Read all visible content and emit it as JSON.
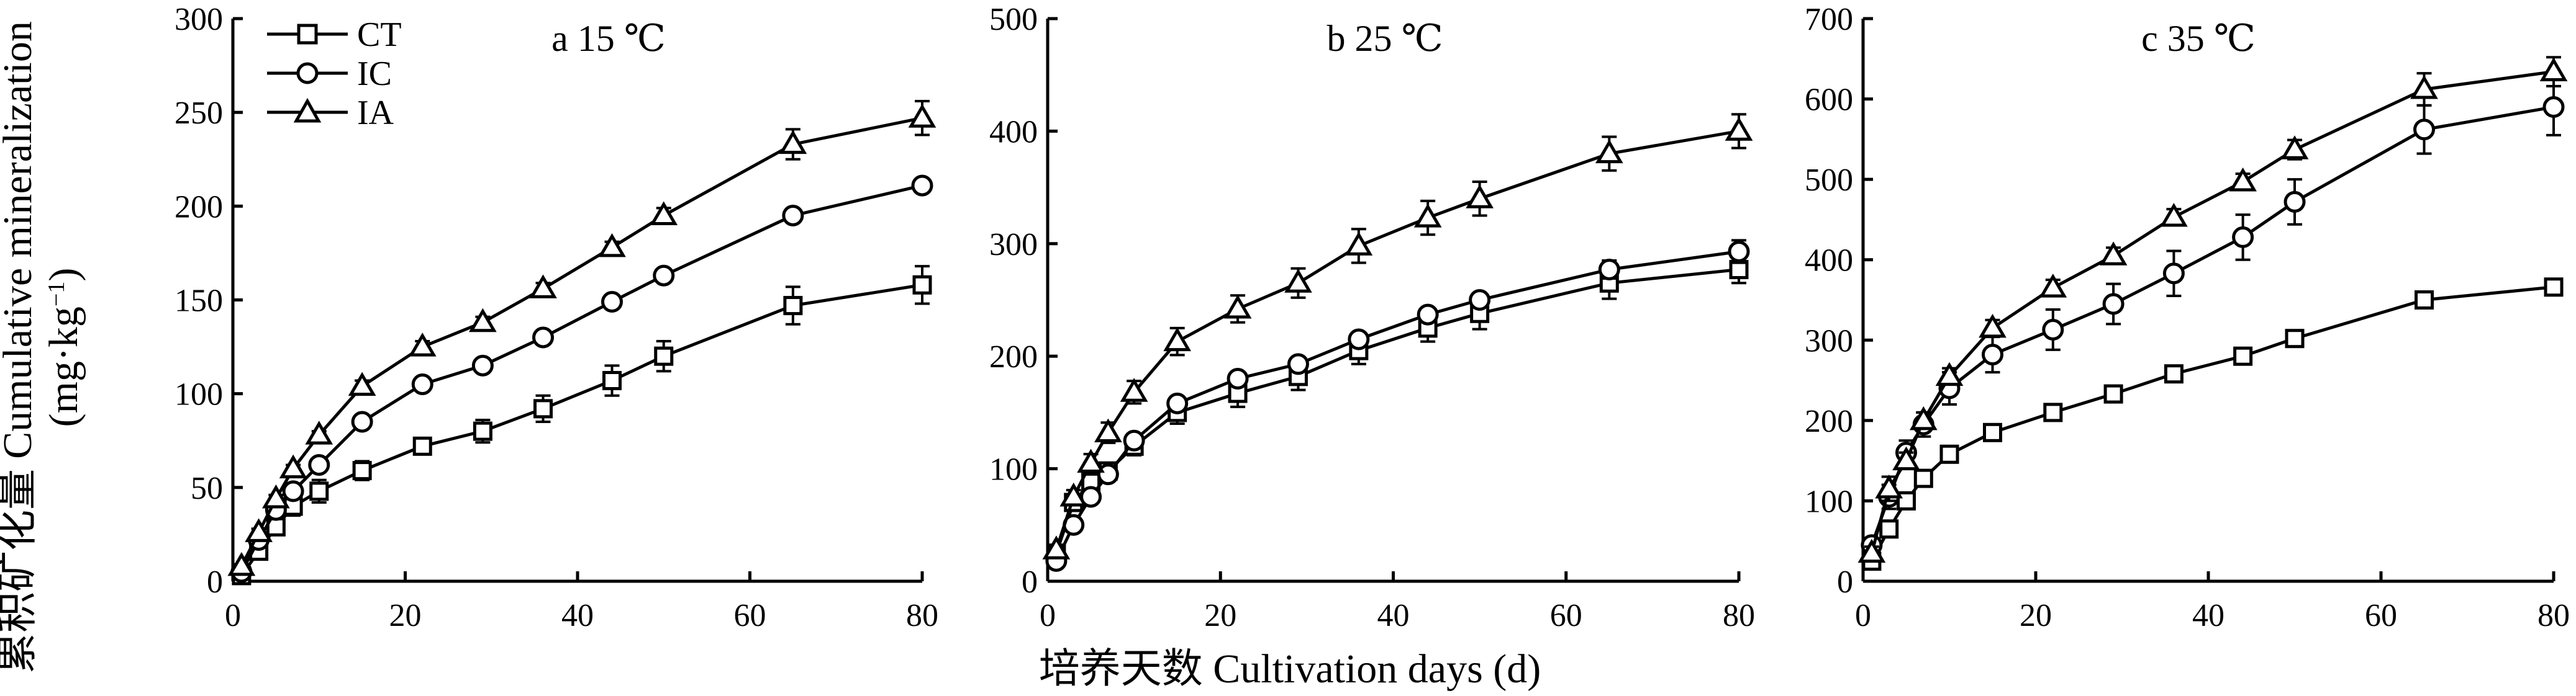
{
  "figure": {
    "y_label_cn": "累积矿化量",
    "y_label_en": "Cumulative mineralization",
    "y_label_unit_open": "(mg·kg",
    "y_label_unit_sup": "−1",
    "y_label_unit_close": ")",
    "x_label": "培养天数 Cultivation days (d)"
  },
  "legend": [
    {
      "name": "CT",
      "marker": "square"
    },
    {
      "name": "IC",
      "marker": "circle"
    },
    {
      "name": "IA",
      "marker": "triangle"
    }
  ],
  "chart_data": [
    {
      "type": "line",
      "title": "a 15 ℃",
      "x": [
        1,
        3,
        5,
        7,
        10,
        15,
        22,
        29,
        36,
        44,
        50,
        65,
        80
      ],
      "xlim": [
        0,
        80
      ],
      "xticks": [
        0,
        20,
        40,
        60,
        80
      ],
      "ylim": [
        0,
        300
      ],
      "yticks": [
        0,
        50,
        100,
        150,
        200,
        250,
        300
      ],
      "legend_position": "top-left",
      "series": [
        {
          "name": "CT",
          "marker": "square",
          "values": [
            3,
            16,
            29,
            40,
            48,
            59,
            72,
            80,
            92,
            107,
            120,
            147,
            158
          ],
          "errors": [
            1,
            2,
            3,
            5,
            6,
            5,
            4,
            6,
            7,
            8,
            8,
            10,
            10
          ]
        },
        {
          "name": "IC",
          "marker": "circle",
          "values": [
            5,
            22,
            38,
            48,
            62,
            85,
            105,
            115,
            130,
            149,
            163,
            195,
            211
          ],
          "errors": [
            1,
            2,
            2,
            2,
            2,
            2,
            2,
            2,
            2,
            2,
            2,
            2,
            3
          ]
        },
        {
          "name": "IA",
          "marker": "triangle",
          "values": [
            8,
            26,
            44,
            60,
            78,
            104,
            125,
            138,
            156,
            178,
            195,
            233,
            247
          ],
          "errors": [
            1,
            2,
            2,
            2,
            2,
            3,
            3,
            3,
            3,
            3,
            4,
            8,
            9
          ]
        }
      ]
    },
    {
      "type": "line",
      "title": "b 25 ℃",
      "x": [
        1,
        3,
        5,
        7,
        10,
        15,
        22,
        29,
        36,
        44,
        50,
        65,
        80
      ],
      "xlim": [
        0,
        80
      ],
      "xticks": [
        0,
        20,
        40,
        60,
        80
      ],
      "ylim": [
        0,
        500
      ],
      "yticks": [
        0,
        100,
        200,
        300,
        400,
        500
      ],
      "series": [
        {
          "name": "CT",
          "marker": "square",
          "values": [
            25,
            70,
            88,
            98,
            120,
            150,
            167,
            182,
            205,
            225,
            238,
            265,
            277
          ],
          "errors": [
            3,
            6,
            6,
            6,
            8,
            10,
            12,
            12,
            12,
            12,
            14,
            14,
            12
          ]
        },
        {
          "name": "IC",
          "marker": "circle",
          "values": [
            18,
            50,
            75,
            95,
            125,
            158,
            180,
            193,
            215,
            237,
            250,
            277,
            293
          ],
          "errors": [
            3,
            6,
            5,
            5,
            5,
            4,
            4,
            4,
            4,
            4,
            5,
            8,
            10
          ]
        },
        {
          "name": "IA",
          "marker": "triangle",
          "values": [
            28,
            75,
            105,
            132,
            168,
            213,
            242,
            265,
            298,
            323,
            340,
            380,
            400
          ],
          "errors": [
            3,
            6,
            8,
            9,
            10,
            12,
            12,
            13,
            15,
            15,
            15,
            15,
            15
          ]
        }
      ]
    },
    {
      "type": "line",
      "title": "c 35 ℃",
      "x": [
        1,
        3,
        5,
        7,
        10,
        15,
        22,
        29,
        36,
        44,
        50,
        65,
        80
      ],
      "xlim": [
        0,
        80
      ],
      "xticks": [
        0,
        20,
        40,
        60,
        80
      ],
      "ylim": [
        0,
        700
      ],
      "yticks": [
        0,
        100,
        200,
        300,
        400,
        500,
        600,
        700
      ],
      "series": [
        {
          "name": "CT",
          "marker": "square",
          "values": [
            25,
            65,
            100,
            128,
            158,
            185,
            210,
            233,
            258,
            280,
            302,
            350,
            366
          ],
          "errors": [
            3,
            4,
            4,
            4,
            4,
            4,
            4,
            4,
            4,
            4,
            4,
            4,
            5
          ]
        },
        {
          "name": "IC",
          "marker": "circle",
          "values": [
            45,
            105,
            160,
            195,
            240,
            282,
            313,
            345,
            383,
            428,
            472,
            562,
            590
          ],
          "errors": [
            8,
            15,
            15,
            15,
            20,
            22,
            25,
            25,
            28,
            28,
            28,
            30,
            35
          ]
        },
        {
          "name": "IA",
          "marker": "triangle",
          "values": [
            35,
            115,
            150,
            200,
            255,
            315,
            365,
            405,
            453,
            497,
            537,
            612,
            634
          ],
          "errors": [
            8,
            15,
            10,
            10,
            10,
            10,
            10,
            10,
            10,
            10,
            12,
            20,
            18
          ]
        }
      ]
    }
  ]
}
